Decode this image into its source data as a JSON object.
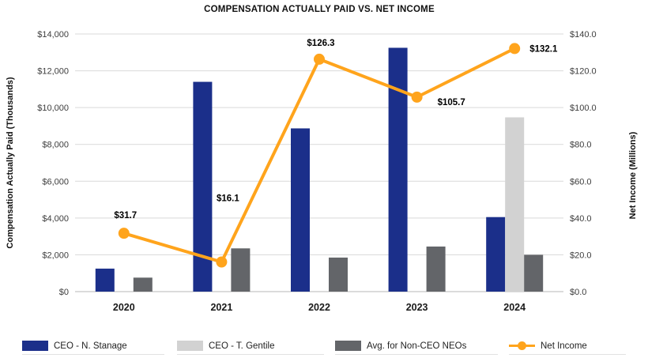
{
  "chart_data": {
    "type": "combo-bar-line",
    "title": "COMPENSATION ACTUALLY PAID VS. NET INCOME",
    "categories": [
      "2020",
      "2021",
      "2022",
      "2023",
      "2024"
    ],
    "bar_series": [
      {
        "name": "CEO - N. Stanage",
        "color": "#1b2f8a",
        "values": [
          1250,
          11400,
          8870,
          13250,
          4050
        ]
      },
      {
        "name": "CEO - T. Gentile",
        "color": "#d2d2d2",
        "values": [
          0,
          0,
          0,
          0,
          9470
        ]
      },
      {
        "name": "Avg. for Non-CEO NEOs",
        "color": "#636569",
        "values": [
          760,
          2350,
          1850,
          2450,
          2000
        ]
      }
    ],
    "line_series": {
      "name": "Net Income",
      "color": "#ffa41c",
      "values": [
        31.7,
        16.1,
        126.3,
        105.7,
        132.1
      ],
      "labels": [
        "$31.7",
        "$16.1",
        "$126.3",
        "$105.7",
        "$132.1"
      ]
    },
    "left_axis": {
      "title": "Compensation Actually Paid (Thousands)",
      "min": 0,
      "max": 14000,
      "step": 2000,
      "tick_labels": [
        "$0",
        "$2,000",
        "$4,000",
        "$6,000",
        "$8,000",
        "$10,000",
        "$12,000",
        "$14,000"
      ]
    },
    "right_axis": {
      "title": "Net Income (Millions)",
      "min": 0,
      "max": 140,
      "step": 20,
      "tick_labels": [
        "$0.0",
        "$20.0",
        "$40.0",
        "$60.0",
        "$80.0",
        "$100.0",
        "$120.0",
        "$140.0"
      ]
    },
    "grid": true,
    "legend_position": "bottom"
  }
}
